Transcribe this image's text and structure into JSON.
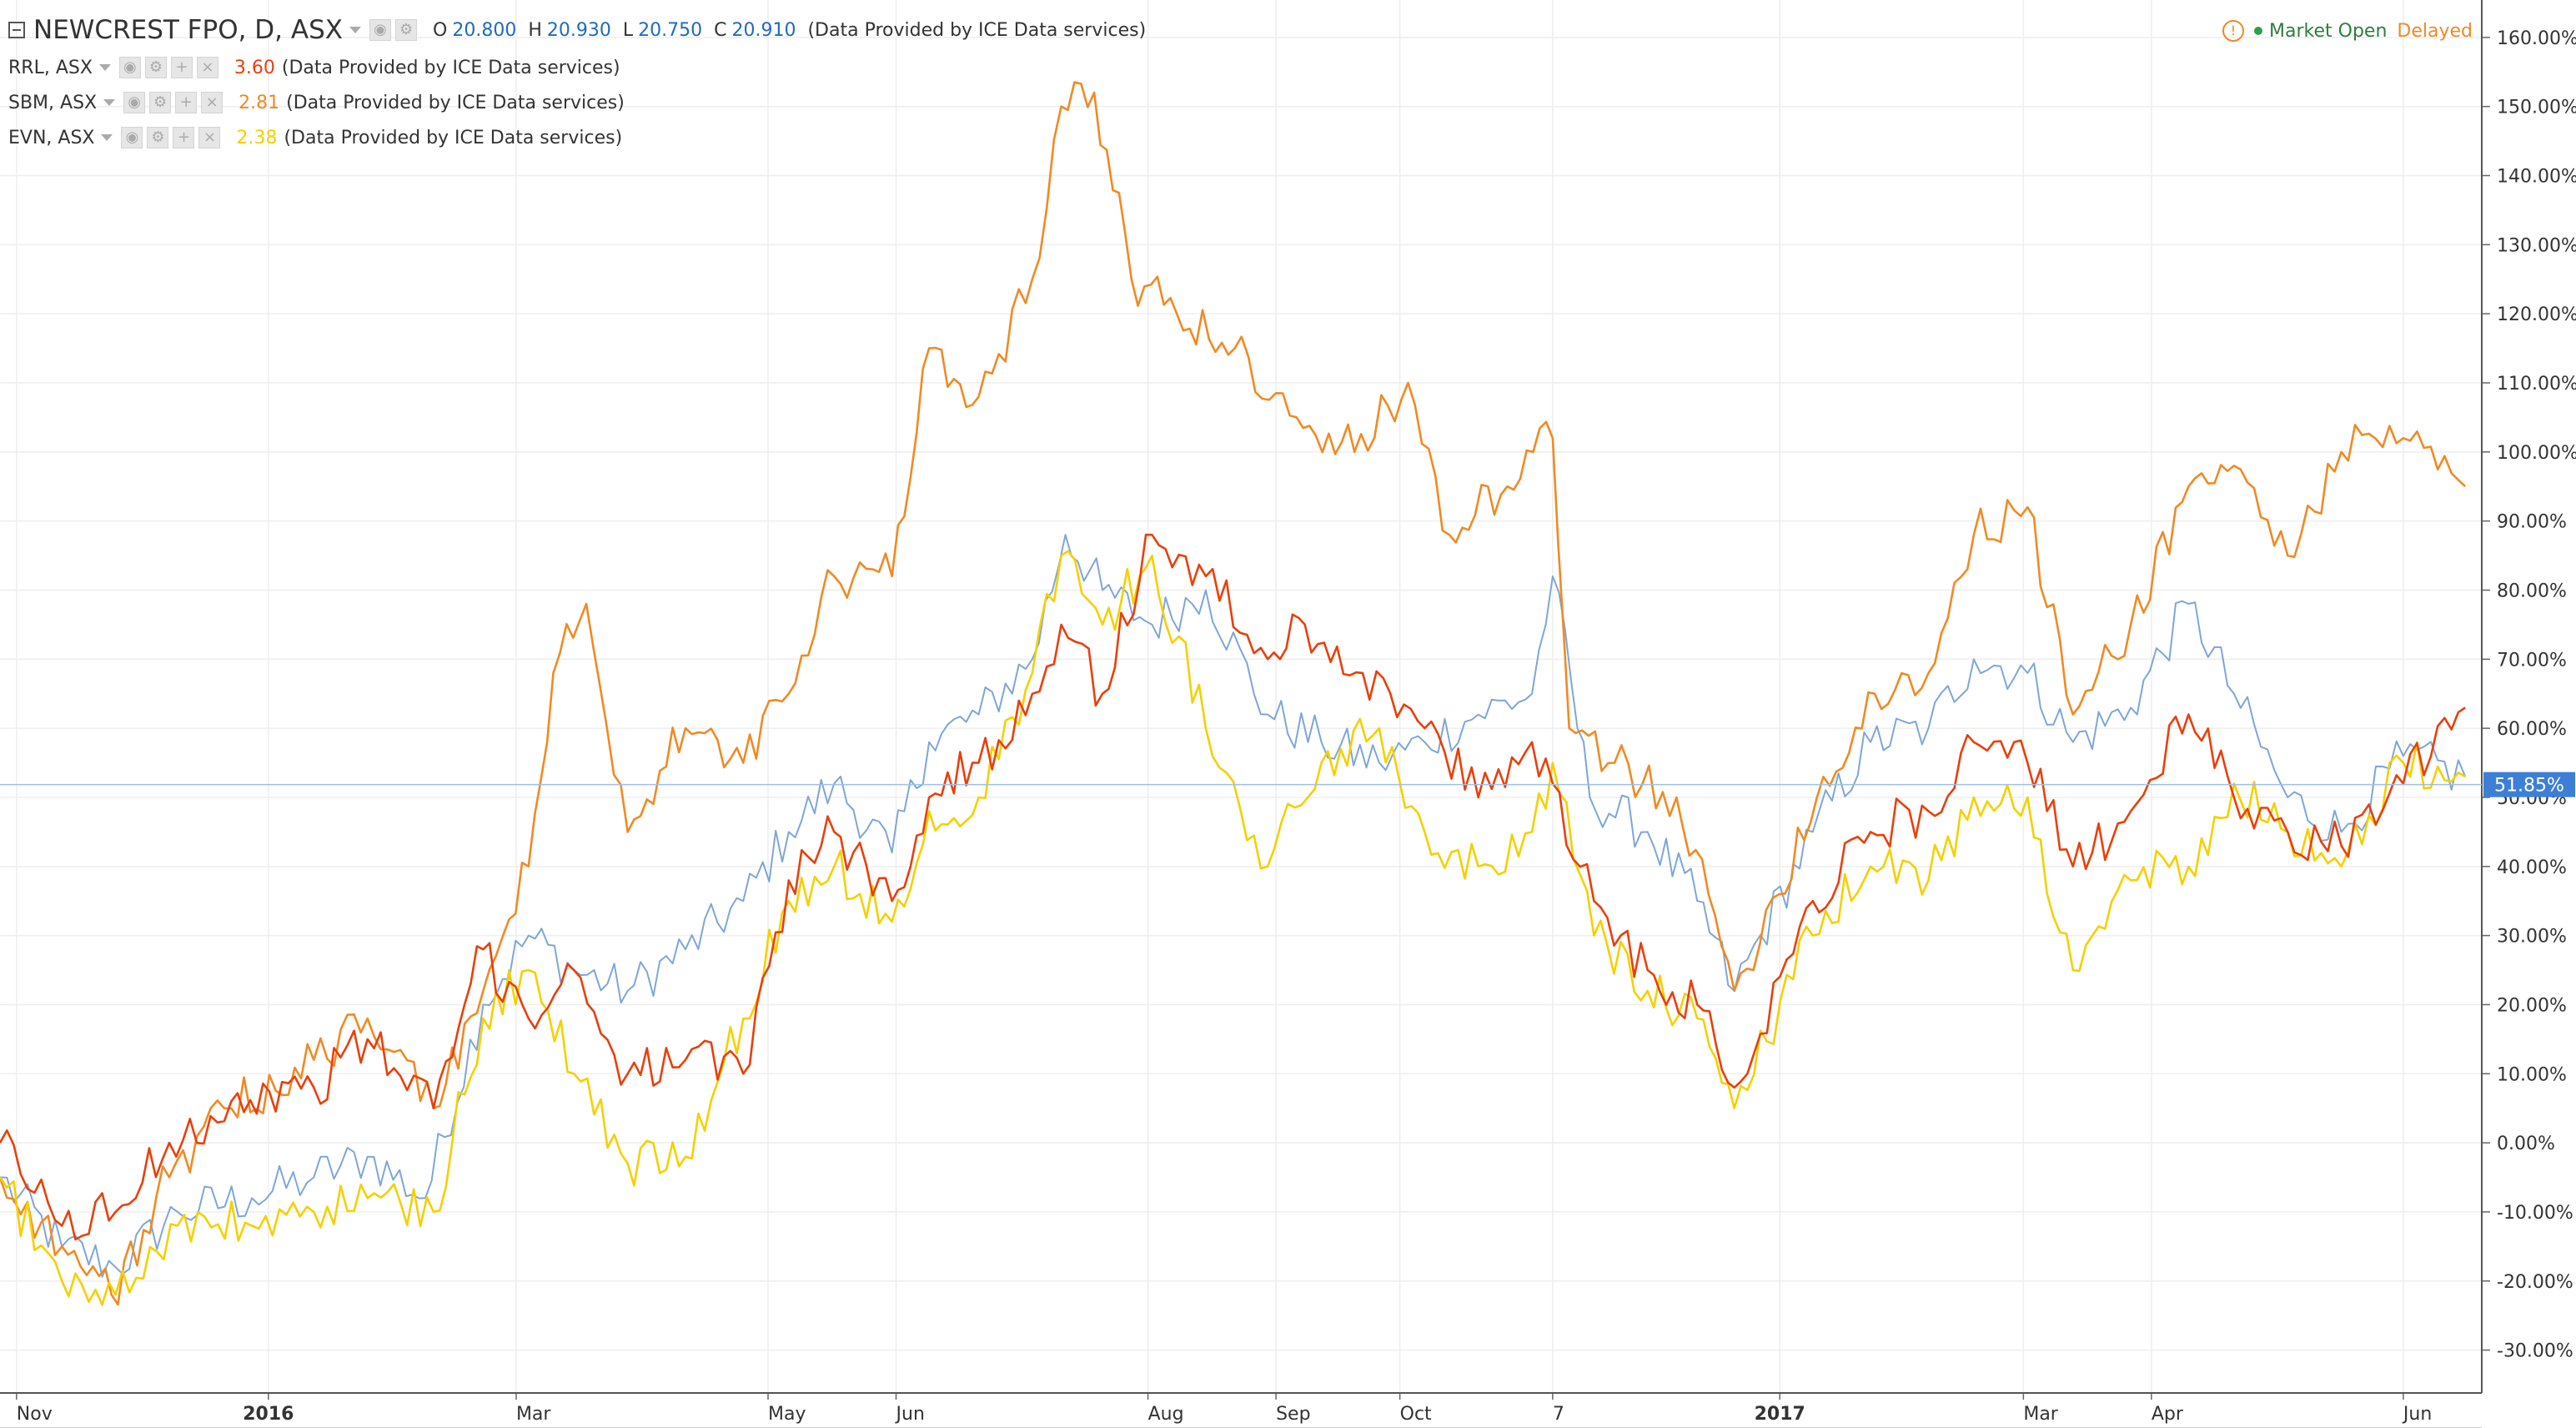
{
  "header": {
    "main_symbol": "NEWCREST FPO, D, ASX",
    "ohlc": {
      "o_label": "O",
      "o": "20.800",
      "h_label": "H",
      "h": "20.930",
      "l_label": "L",
      "l": "20.750",
      "c_label": "C",
      "c": "20.910"
    },
    "provider_note": "(Data Provided by ICE Data services)",
    "comparisons": [
      {
        "symbol": "RRL, ASX",
        "value": "3.60",
        "color": "#e8400c",
        "note": "(Data Provided by ICE Data services)"
      },
      {
        "symbol": "SBM, ASX",
        "value": "2.81",
        "color": "#f08a24",
        "note": "(Data Provided by ICE Data services)"
      },
      {
        "symbol": "EVN, ASX",
        "value": "2.38",
        "color": "#f5d000",
        "note": "(Data Provided by ICE Data services)"
      }
    ]
  },
  "status": {
    "warning_icon": "exclamation-circle-icon",
    "market": "Market Open",
    "delayed": "Delayed",
    "market_color": "#2e9e4f",
    "delayed_color": "#f08a24"
  },
  "chart_data": {
    "type": "line",
    "y_scale": "percent change",
    "ylim": [
      -35,
      163
    ],
    "xlim": [
      "2015-10-28",
      "2017-06-20"
    ],
    "grid": true,
    "y_ticks": [
      {
        "v": 160,
        "label": "160.00%"
      },
      {
        "v": 150,
        "label": "150.00%"
      },
      {
        "v": 140,
        "label": "140.00%"
      },
      {
        "v": 130,
        "label": "130.00%"
      },
      {
        "v": 120,
        "label": "120.00%"
      },
      {
        "v": 110,
        "label": "110.00%"
      },
      {
        "v": 100,
        "label": "100.00%"
      },
      {
        "v": 90,
        "label": "90.00%"
      },
      {
        "v": 80,
        "label": "80.00%"
      },
      {
        "v": 70,
        "label": "70.00%"
      },
      {
        "v": 60,
        "label": "60.00%"
      },
      {
        "v": 50,
        "label": "50.00%"
      },
      {
        "v": 40,
        "label": "40.00%"
      },
      {
        "v": 30,
        "label": "30.00%"
      },
      {
        "v": 20,
        "label": "20.00%"
      },
      {
        "v": 10,
        "label": "10.00%"
      },
      {
        "v": 0,
        "label": "0.00%"
      },
      {
        "v": -10,
        "label": "-10.00%"
      },
      {
        "v": -20,
        "label": "-20.00%"
      },
      {
        "v": -30,
        "label": "-30.00%"
      }
    ],
    "x_ticks": [
      {
        "date": "2015-11-01",
        "label": "Nov",
        "bold": false
      },
      {
        "date": "2016-01-01",
        "label": "2016",
        "bold": true
      },
      {
        "date": "2016-03-01",
        "label": "Mar",
        "bold": false
      },
      {
        "date": "2016-05-01",
        "label": "May",
        "bold": false
      },
      {
        "date": "2016-06-01",
        "label": "Jun",
        "bold": false
      },
      {
        "date": "2016-08-01",
        "label": "Aug",
        "bold": false
      },
      {
        "date": "2016-09-01",
        "label": "Sep",
        "bold": false
      },
      {
        "date": "2016-10-01",
        "label": "Oct",
        "bold": false
      },
      {
        "date": "2016-11-07",
        "label": "7",
        "bold": false
      },
      {
        "date": "2017-01-01",
        "label": "2017",
        "bold": true
      },
      {
        "date": "2017-03-01",
        "label": "Mar",
        "bold": false
      },
      {
        "date": "2017-04-01",
        "label": "Apr",
        "bold": false
      },
      {
        "date": "2017-06-01",
        "label": "Jun",
        "bold": false
      }
    ],
    "last_value": {
      "v": 51.85,
      "label": "51.85%",
      "color": "#3d7fd6"
    },
    "series": [
      {
        "name": "NEWCREST FPO",
        "color": "#7ea6d8",
        "points": [
          [
            "2015-10-28",
            -5
          ],
          [
            "2015-11-12",
            -15
          ],
          [
            "2015-11-25",
            -18
          ],
          [
            "2015-12-10",
            -10
          ],
          [
            "2015-12-28",
            -8
          ],
          [
            "2016-01-12",
            -5
          ],
          [
            "2016-01-25",
            -2
          ],
          [
            "2016-02-08",
            -8
          ],
          [
            "2016-02-22",
            20
          ],
          [
            "2016-03-04",
            30
          ],
          [
            "2016-03-15",
            25
          ],
          [
            "2016-03-28",
            22
          ],
          [
            "2016-04-11",
            28
          ],
          [
            "2016-04-25",
            35
          ],
          [
            "2016-05-06",
            45
          ],
          [
            "2016-05-17",
            52
          ],
          [
            "2016-05-31",
            42
          ],
          [
            "2016-06-09",
            58
          ],
          [
            "2016-06-21",
            62
          ],
          [
            "2016-07-04",
            70
          ],
          [
            "2016-07-12",
            88
          ],
          [
            "2016-07-21",
            80
          ],
          [
            "2016-08-02",
            75
          ],
          [
            "2016-08-15",
            80
          ],
          [
            "2016-08-30",
            62
          ],
          [
            "2016-09-12",
            58
          ],
          [
            "2016-09-26",
            55
          ],
          [
            "2016-10-07",
            58
          ],
          [
            "2016-10-20",
            62
          ],
          [
            "2016-11-02",
            65
          ],
          [
            "2016-11-07",
            82
          ],
          [
            "2016-11-16",
            50
          ],
          [
            "2016-11-30",
            45
          ],
          [
            "2016-12-12",
            35
          ],
          [
            "2016-12-21",
            22
          ],
          [
            "2017-01-09",
            45
          ],
          [
            "2017-01-23",
            58
          ],
          [
            "2017-02-06",
            60
          ],
          [
            "2017-02-17",
            70
          ],
          [
            "2017-03-02",
            68
          ],
          [
            "2017-03-13",
            58
          ],
          [
            "2017-03-27",
            63
          ],
          [
            "2017-04-10",
            78
          ],
          [
            "2017-04-21",
            65
          ],
          [
            "2017-05-04",
            50
          ],
          [
            "2017-05-17",
            45
          ],
          [
            "2017-06-01",
            56
          ],
          [
            "2017-06-16",
            53
          ]
        ]
      },
      {
        "name": "RRL",
        "color": "#e8400c",
        "points": [
          [
            "2015-10-28",
            0
          ],
          [
            "2015-11-12",
            -12
          ],
          [
            "2015-11-25",
            -10
          ],
          [
            "2015-12-08",
            0
          ],
          [
            "2015-12-23",
            6
          ],
          [
            "2016-01-12",
            8
          ],
          [
            "2016-01-25",
            15
          ],
          [
            "2016-02-10",
            5
          ],
          [
            "2016-02-22",
            28
          ],
          [
            "2016-03-04",
            18
          ],
          [
            "2016-03-15",
            25
          ],
          [
            "2016-03-28",
            10
          ],
          [
            "2016-04-11",
            12
          ],
          [
            "2016-04-25",
            10
          ],
          [
            "2016-05-06",
            38
          ],
          [
            "2016-05-17",
            45
          ],
          [
            "2016-05-31",
            35
          ],
          [
            "2016-06-09",
            50
          ],
          [
            "2016-06-21",
            55
          ],
          [
            "2016-07-04",
            65
          ],
          [
            "2016-07-11",
            75
          ],
          [
            "2016-07-21",
            65
          ],
          [
            "2016-08-02",
            88
          ],
          [
            "2016-08-15",
            82
          ],
          [
            "2016-08-30",
            70
          ],
          [
            "2016-09-08",
            75
          ],
          [
            "2016-09-22",
            68
          ],
          [
            "2016-10-07",
            60
          ],
          [
            "2016-10-20",
            50
          ],
          [
            "2016-11-02",
            58
          ],
          [
            "2016-11-07",
            52
          ],
          [
            "2016-11-17",
            35
          ],
          [
            "2016-11-30",
            25
          ],
          [
            "2016-12-12",
            20
          ],
          [
            "2016-12-21",
            8
          ],
          [
            "2017-01-09",
            35
          ],
          [
            "2017-01-23",
            45
          ],
          [
            "2017-02-06",
            48
          ],
          [
            "2017-02-17",
            58
          ],
          [
            "2017-03-02",
            55
          ],
          [
            "2017-03-13",
            40
          ],
          [
            "2017-03-27",
            48
          ],
          [
            "2017-04-10",
            62
          ],
          [
            "2017-04-21",
            50
          ],
          [
            "2017-05-04",
            45
          ],
          [
            "2017-05-17",
            43
          ],
          [
            "2017-06-01",
            52
          ],
          [
            "2017-06-16",
            63
          ]
        ]
      },
      {
        "name": "SBM",
        "color": "#f08a24",
        "points": [
          [
            "2015-10-28",
            -5
          ],
          [
            "2015-11-12",
            -15
          ],
          [
            "2015-11-24",
            -22
          ],
          [
            "2015-12-08",
            -5
          ],
          [
            "2015-12-23",
            5
          ],
          [
            "2016-01-12",
            12
          ],
          [
            "2016-01-25",
            18
          ],
          [
            "2016-02-10",
            5
          ],
          [
            "2016-02-22",
            22
          ],
          [
            "2016-03-04",
            40
          ],
          [
            "2016-03-10",
            68
          ],
          [
            "2016-03-18",
            78
          ],
          [
            "2016-03-28",
            45
          ],
          [
            "2016-04-11",
            60
          ],
          [
            "2016-04-25",
            55
          ],
          [
            "2016-05-06",
            65
          ],
          [
            "2016-05-17",
            82
          ],
          [
            "2016-05-31",
            82
          ],
          [
            "2016-06-09",
            115
          ],
          [
            "2016-06-21",
            108
          ],
          [
            "2016-07-04",
            125
          ],
          [
            "2016-07-11",
            150
          ],
          [
            "2016-07-19",
            152
          ],
          [
            "2016-07-28",
            125
          ],
          [
            "2016-08-08",
            120
          ],
          [
            "2016-08-22",
            115
          ],
          [
            "2016-09-06",
            105
          ],
          [
            "2016-09-20",
            100
          ],
          [
            "2016-10-03",
            110
          ],
          [
            "2016-10-13",
            88
          ],
          [
            "2016-10-27",
            95
          ],
          [
            "2016-11-07",
            102
          ],
          [
            "2016-11-11",
            60
          ],
          [
            "2016-11-22",
            55
          ],
          [
            "2016-12-07",
            50
          ],
          [
            "2016-12-21",
            22
          ],
          [
            "2017-01-10",
            50
          ],
          [
            "2017-01-24",
            65
          ],
          [
            "2017-02-06",
            68
          ],
          [
            "2017-02-17",
            88
          ],
          [
            "2017-03-02",
            92
          ],
          [
            "2017-03-13",
            62
          ],
          [
            "2017-03-27",
            75
          ],
          [
            "2017-04-10",
            95
          ],
          [
            "2017-04-21",
            98
          ],
          [
            "2017-05-04",
            85
          ],
          [
            "2017-05-17",
            100
          ],
          [
            "2017-06-01",
            102
          ],
          [
            "2017-06-16",
            95
          ]
        ]
      },
      {
        "name": "EVN",
        "color": "#f5d000",
        "points": [
          [
            "2015-10-28",
            -5
          ],
          [
            "2015-11-12",
            -20
          ],
          [
            "2015-11-25",
            -22
          ],
          [
            "2015-12-10",
            -12
          ],
          [
            "2015-12-28",
            -12
          ],
          [
            "2016-01-12",
            -10
          ],
          [
            "2016-01-25",
            -8
          ],
          [
            "2016-02-10",
            -10
          ],
          [
            "2016-02-22",
            18
          ],
          [
            "2016-03-04",
            25
          ],
          [
            "2016-03-15",
            10
          ],
          [
            "2016-03-28",
            -3
          ],
          [
            "2016-04-11",
            -2
          ],
          [
            "2016-04-25",
            18
          ],
          [
            "2016-05-06",
            35
          ],
          [
            "2016-05-17",
            40
          ],
          [
            "2016-05-31",
            32
          ],
          [
            "2016-06-09",
            48
          ],
          [
            "2016-06-21",
            50
          ],
          [
            "2016-07-04",
            68
          ],
          [
            "2016-07-11",
            85
          ],
          [
            "2016-07-21",
            75
          ],
          [
            "2016-08-02",
            85
          ],
          [
            "2016-08-15",
            60
          ],
          [
            "2016-08-30",
            40
          ],
          [
            "2016-09-12",
            55
          ],
          [
            "2016-09-26",
            60
          ],
          [
            "2016-10-07",
            45
          ],
          [
            "2016-10-20",
            40
          ],
          [
            "2016-11-02",
            45
          ],
          [
            "2016-11-07",
            55
          ],
          [
            "2016-11-17",
            30
          ],
          [
            "2016-11-30",
            22
          ],
          [
            "2016-12-12",
            18
          ],
          [
            "2016-12-21",
            5
          ],
          [
            "2017-01-09",
            30
          ],
          [
            "2017-01-23",
            40
          ],
          [
            "2017-02-06",
            38
          ],
          [
            "2017-02-17",
            50
          ],
          [
            "2017-03-02",
            50
          ],
          [
            "2017-03-13",
            25
          ],
          [
            "2017-03-27",
            38
          ],
          [
            "2017-04-10",
            40
          ],
          [
            "2017-04-21",
            52
          ],
          [
            "2017-05-04",
            45
          ],
          [
            "2017-05-17",
            40
          ],
          [
            "2017-06-01",
            55
          ],
          [
            "2017-06-16",
            53
          ]
        ]
      }
    ]
  }
}
